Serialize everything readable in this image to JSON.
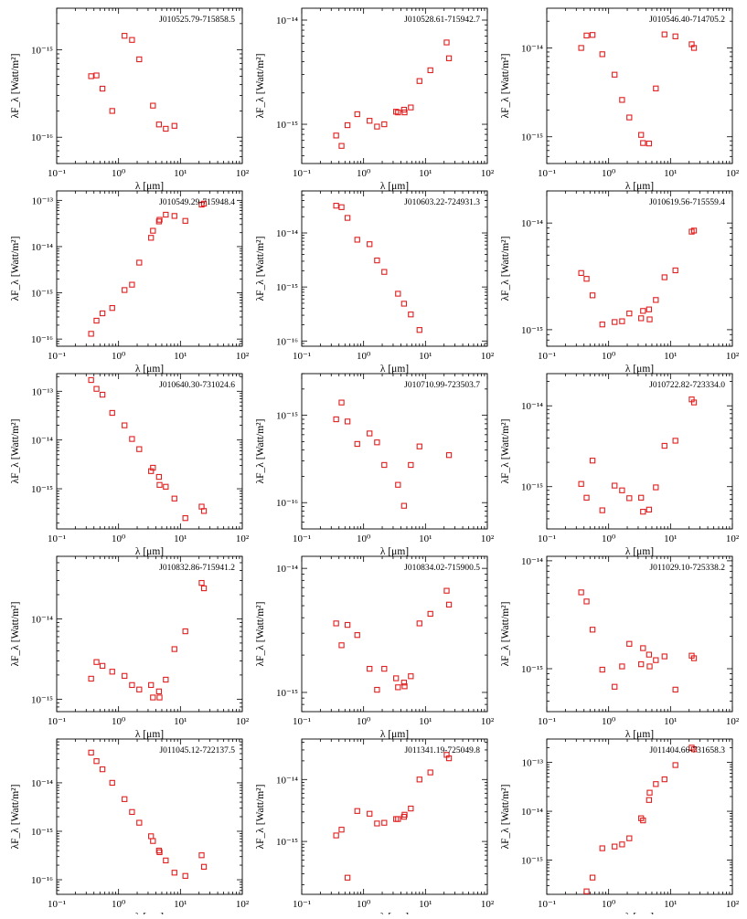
{
  "chart_data": [
    {
      "type": "scatter",
      "title": "J010525.79-715858.5",
      "xlabel": "λ [μm]",
      "ylabel": "λF_λ [Watt/m²]",
      "xscale": "log",
      "yscale": "log",
      "xlim": [
        0.1,
        100
      ],
      "ylim": [
        5e-17,
        3e-15
      ],
      "marker": "open-square",
      "color": "#e02020",
      "grid": false,
      "points": [
        [
          0.36,
          5e-16
        ],
        [
          0.44,
          5.1e-16
        ],
        [
          0.55,
          3.6e-16
        ],
        [
          0.79,
          2e-16
        ],
        [
          1.25,
          1.45e-15
        ],
        [
          1.65,
          1.3e-15
        ],
        [
          2.16,
          7.8e-16
        ],
        [
          3.6,
          2.3e-16
        ],
        [
          4.5,
          1.4e-16
        ],
        [
          5.8,
          1.25e-16
        ],
        [
          8.0,
          1.35e-16
        ]
      ]
    },
    {
      "type": "scatter",
      "title": "J010528.61-715942.7",
      "xlabel": "λ [μm]",
      "ylabel": "λF_λ [Watt/m²]",
      "xscale": "log",
      "yscale": "log",
      "xlim": [
        0.1,
        100
      ],
      "ylim": [
        4.2e-16,
        1.3e-14
      ],
      "marker": "open-square",
      "color": "#e02020",
      "grid": false,
      "points": [
        [
          0.36,
          7.8e-16
        ],
        [
          0.44,
          6.2e-16
        ],
        [
          0.55,
          9.8e-16
        ],
        [
          0.79,
          1.25e-15
        ],
        [
          1.25,
          1.08e-15
        ],
        [
          1.65,
          9.5e-16
        ],
        [
          2.16,
          1e-15
        ],
        [
          3.35,
          1.32e-15
        ],
        [
          3.6,
          1.3e-15
        ],
        [
          4.5,
          1.38e-15
        ],
        [
          4.6,
          1.3e-15
        ],
        [
          5.8,
          1.45e-15
        ],
        [
          8.0,
          2.6e-15
        ],
        [
          12,
          3.3e-15
        ],
        [
          22,
          6.1e-15
        ],
        [
          24,
          4.3e-15
        ]
      ]
    },
    {
      "type": "scatter",
      "title": "J010546.40-714705.2",
      "xlabel": "λ [μm]",
      "ylabel": "λF_λ [Watt/m²]",
      "xscale": "log",
      "yscale": "log",
      "xlim": [
        0.1,
        100
      ],
      "ylim": [
        5e-16,
        2.8e-14
      ],
      "marker": "open-square",
      "color": "#e02020",
      "grid": false,
      "points": [
        [
          0.36,
          1e-14
        ],
        [
          0.44,
          1.38e-14
        ],
        [
          0.55,
          1.4e-14
        ],
        [
          0.79,
          8.5e-15
        ],
        [
          1.25,
          5e-15
        ],
        [
          1.65,
          2.6e-15
        ],
        [
          2.16,
          1.65e-15
        ],
        [
          3.35,
          1.05e-15
        ],
        [
          3.6,
          8.5e-16
        ],
        [
          4.5,
          8.4e-16
        ],
        [
          5.8,
          3.5e-15
        ],
        [
          8.0,
          1.42e-14
        ],
        [
          12,
          1.35e-14
        ],
        [
          22,
          1.1e-14
        ],
        [
          24,
          1e-14
        ]
      ]
    },
    {
      "type": "scatter",
      "title": "J010549.29-715948.4",
      "xlabel": "λ [μm]",
      "ylabel": "λF_λ [Watt/m²]",
      "xscale": "log",
      "yscale": "log",
      "xlim": [
        0.1,
        100
      ],
      "ylim": [
        7e-17,
        1.6e-13
      ],
      "marker": "open-square",
      "color": "#e02020",
      "grid": false,
      "points": [
        [
          0.36,
          1.3e-16
        ],
        [
          0.44,
          2.5e-16
        ],
        [
          0.55,
          3.6e-16
        ],
        [
          0.79,
          4.7e-16
        ],
        [
          1.25,
          1.15e-15
        ],
        [
          1.65,
          1.5e-15
        ],
        [
          2.16,
          4.5e-15
        ],
        [
          3.35,
          1.55e-14
        ],
        [
          3.6,
          2.2e-14
        ],
        [
          4.5,
          3.5e-14
        ],
        [
          4.6,
          3.8e-14
        ],
        [
          5.8,
          4.9e-14
        ],
        [
          8.0,
          4.6e-14
        ],
        [
          12,
          3.6e-14
        ],
        [
          22,
          8.1e-14
        ],
        [
          24,
          8.5e-14
        ]
      ]
    },
    {
      "type": "scatter",
      "title": "J010603.22-724931.3",
      "xlabel": "λ [μm]",
      "ylabel": "λF_λ [Watt/m²]",
      "xscale": "log",
      "yscale": "log",
      "xlim": [
        0.1,
        100
      ],
      "ylim": [
        8e-17,
        6e-14
      ],
      "marker": "open-square",
      "color": "#e02020",
      "grid": false,
      "points": [
        [
          0.36,
          3.2e-14
        ],
        [
          0.44,
          3e-14
        ],
        [
          0.55,
          1.9e-14
        ],
        [
          0.79,
          7.5e-15
        ],
        [
          1.25,
          6.2e-15
        ],
        [
          1.65,
          3.1e-15
        ],
        [
          2.16,
          1.9e-15
        ],
        [
          3.6,
          7.5e-16
        ],
        [
          4.5,
          4.9e-16
        ],
        [
          5.8,
          3.1e-16
        ],
        [
          8.0,
          1.6e-16
        ]
      ]
    },
    {
      "type": "scatter",
      "title": "J010619.56-715559.4",
      "xlabel": "λ [μm]",
      "ylabel": "λF_λ [Watt/m²]",
      "xscale": "log",
      "yscale": "log",
      "xlim": [
        0.1,
        100
      ],
      "ylim": [
        7e-16,
        2e-14
      ],
      "marker": "open-square",
      "color": "#e02020",
      "grid": false,
      "points": [
        [
          0.36,
          3.4e-15
        ],
        [
          0.44,
          3e-15
        ],
        [
          0.55,
          2.1e-15
        ],
        [
          0.79,
          1.12e-15
        ],
        [
          1.25,
          1.18e-15
        ],
        [
          1.65,
          1.2e-15
        ],
        [
          2.16,
          1.42e-15
        ],
        [
          3.35,
          1.28e-15
        ],
        [
          3.6,
          1.5e-15
        ],
        [
          4.5,
          1.55e-15
        ],
        [
          4.6,
          1.25e-15
        ],
        [
          5.8,
          1.9e-15
        ],
        [
          8.0,
          3.1e-15
        ],
        [
          12,
          3.6e-15
        ],
        [
          22,
          8.3e-15
        ],
        [
          24,
          8.5e-15
        ]
      ]
    },
    {
      "type": "scatter",
      "title": "J010640.30-731024.6",
      "xlabel": "λ [μm]",
      "ylabel": "λF_λ [Watt/m²]",
      "xscale": "log",
      "yscale": "log",
      "xlim": [
        0.1,
        100
      ],
      "ylim": [
        1.5e-16,
        2.3e-13
      ],
      "marker": "open-square",
      "color": "#e02020",
      "grid": false,
      "points": [
        [
          0.36,
          1.7e-13
        ],
        [
          0.44,
          1.12e-13
        ],
        [
          0.55,
          8.5e-14
        ],
        [
          0.79,
          3.6e-14
        ],
        [
          1.25,
          2e-14
        ],
        [
          1.65,
          1.05e-14
        ],
        [
          2.16,
          6.5e-15
        ],
        [
          3.35,
          2.3e-15
        ],
        [
          3.6,
          2.7e-15
        ],
        [
          4.5,
          1.75e-15
        ],
        [
          4.6,
          1.2e-15
        ],
        [
          5.8,
          1.1e-15
        ],
        [
          8.0,
          6.3e-16
        ],
        [
          12,
          2.5e-16
        ],
        [
          22,
          4.3e-16
        ],
        [
          24,
          3.5e-16
        ]
      ]
    },
    {
      "type": "scatter",
      "title": "J010710.99-723503.7",
      "xlabel": "λ [μm]",
      "ylabel": "λF_λ [Watt/m²]",
      "xscale": "log",
      "yscale": "log",
      "xlim": [
        0.1,
        100
      ],
      "ylim": [
        5e-17,
        3e-15
      ],
      "marker": "open-square",
      "color": "#e02020",
      "grid": false,
      "points": [
        [
          0.36,
          9e-16
        ],
        [
          0.44,
          1.4e-15
        ],
        [
          0.55,
          8.5e-16
        ],
        [
          0.79,
          4.7e-16
        ],
        [
          1.25,
          6.2e-16
        ],
        [
          1.65,
          4.9e-16
        ],
        [
          2.16,
          2.7e-16
        ],
        [
          3.6,
          1.6e-16
        ],
        [
          4.5,
          9.2e-17
        ],
        [
          5.8,
          2.7e-16
        ],
        [
          8.0,
          4.4e-16
        ],
        [
          24,
          3.5e-16
        ]
      ]
    },
    {
      "type": "scatter",
      "title": "J010722.82-723334.0",
      "xlabel": "λ [μm]",
      "ylabel": "λF_λ [Watt/m²]",
      "xscale": "log",
      "yscale": "log",
      "xlim": [
        0.1,
        100
      ],
      "ylim": [
        3e-16,
        2.5e-14
      ],
      "marker": "open-square",
      "color": "#e02020",
      "grid": false,
      "points": [
        [
          0.36,
          1.08e-15
        ],
        [
          0.44,
          7.3e-16
        ],
        [
          0.55,
          2.1e-15
        ],
        [
          0.79,
          5.1e-16
        ],
        [
          1.25,
          1.03e-15
        ],
        [
          1.65,
          9e-16
        ],
        [
          2.16,
          7.2e-16
        ],
        [
          3.35,
          7.3e-16
        ],
        [
          3.6,
          4.9e-16
        ],
        [
          4.5,
          5.2e-16
        ],
        [
          5.8,
          9.8e-16
        ],
        [
          8.0,
          3.2e-15
        ],
        [
          12,
          3.7e-15
        ],
        [
          22,
          1.2e-14
        ],
        [
          24,
          1.1e-14
        ]
      ]
    },
    {
      "type": "scatter",
      "title": "J010832.86-715941.2",
      "xlabel": "λ [μm]",
      "ylabel": "λF_λ [Watt/m²]",
      "xscale": "log",
      "yscale": "log",
      "xlim": [
        0.1,
        100
      ],
      "ylim": [
        7e-16,
        6e-14
      ],
      "marker": "open-square",
      "color": "#e02020",
      "grid": false,
      "points": [
        [
          0.36,
          1.8e-15
        ],
        [
          0.44,
          2.9e-15
        ],
        [
          0.55,
          2.6e-15
        ],
        [
          0.79,
          2.2e-15
        ],
        [
          1.25,
          1.95e-15
        ],
        [
          1.65,
          1.5e-15
        ],
        [
          2.16,
          1.32e-15
        ],
        [
          3.35,
          1.5e-15
        ],
        [
          3.6,
          1.05e-15
        ],
        [
          4.5,
          1.25e-15
        ],
        [
          4.6,
          1.05e-15
        ],
        [
          5.8,
          1.75e-15
        ],
        [
          8.0,
          4.2e-15
        ],
        [
          12,
          7e-15
        ],
        [
          22,
          2.8e-14
        ],
        [
          24,
          2.4e-14
        ]
      ]
    },
    {
      "type": "scatter",
      "title": "J010834.02-715900.5",
      "xlabel": "λ [μm]",
      "ylabel": "λF_λ [Watt/m²]",
      "xscale": "log",
      "yscale": "log",
      "xlim": [
        0.1,
        100
      ],
      "ylim": [
        7e-16,
        1.25e-14
      ],
      "marker": "open-square",
      "color": "#e02020",
      "grid": false,
      "points": [
        [
          0.36,
          3.6e-15
        ],
        [
          0.44,
          2.4e-15
        ],
        [
          0.55,
          3.5e-15
        ],
        [
          0.79,
          2.9e-15
        ],
        [
          1.25,
          1.55e-15
        ],
        [
          1.65,
          1.05e-15
        ],
        [
          2.16,
          1.55e-15
        ],
        [
          3.35,
          1.3e-15
        ],
        [
          3.6,
          1.1e-15
        ],
        [
          4.5,
          1.2e-15
        ],
        [
          4.6,
          1.12e-15
        ],
        [
          5.8,
          1.35e-15
        ],
        [
          8.0,
          3.6e-15
        ],
        [
          12,
          4.3e-15
        ],
        [
          22,
          6.6e-15
        ],
        [
          24,
          5.1e-15
        ]
      ]
    },
    {
      "type": "scatter",
      "title": "J011029.10-725338.2",
      "xlabel": "λ [μm]",
      "ylabel": "λF_λ [Watt/m²]",
      "xscale": "log",
      "yscale": "log",
      "xlim": [
        0.1,
        100
      ],
      "ylim": [
        4e-16,
        1.1e-14
      ],
      "marker": "open-square",
      "color": "#e02020",
      "grid": false,
      "points": [
        [
          0.36,
          5.1e-15
        ],
        [
          0.44,
          4.2e-15
        ],
        [
          0.55,
          2.3e-15
        ],
        [
          0.79,
          9.8e-16
        ],
        [
          1.25,
          6.8e-16
        ],
        [
          1.65,
          1.05e-15
        ],
        [
          2.16,
          1.7e-15
        ],
        [
          3.35,
          1.1e-15
        ],
        [
          3.6,
          1.55e-15
        ],
        [
          4.5,
          1.35e-15
        ],
        [
          4.6,
          1.05e-15
        ],
        [
          5.8,
          1.2e-15
        ],
        [
          8.0,
          1.3e-15
        ],
        [
          12,
          6.4e-16
        ],
        [
          22,
          1.32e-15
        ],
        [
          24,
          1.25e-15
        ]
      ]
    },
    {
      "type": "scatter",
      "title": "J011045.12-722137.5",
      "xlabel": "λ [μm]",
      "ylabel": "λF_λ [Watt/m²]",
      "xscale": "log",
      "yscale": "log",
      "xlim": [
        0.1,
        100
      ],
      "ylim": [
        5e-17,
        8e-14
      ],
      "marker": "open-square",
      "color": "#e02020",
      "grid": false,
      "points": [
        [
          0.36,
          4.2e-14
        ],
        [
          0.44,
          2.8e-14
        ],
        [
          0.55,
          1.9e-14
        ],
        [
          0.79,
          1e-14
        ],
        [
          1.25,
          4.6e-15
        ],
        [
          1.65,
          2.5e-15
        ],
        [
          2.16,
          1.5e-15
        ],
        [
          3.35,
          7.9e-16
        ],
        [
          3.6,
          6.3e-16
        ],
        [
          4.5,
          4e-16
        ],
        [
          4.6,
          3.7e-16
        ],
        [
          5.8,
          2.5e-16
        ],
        [
          8.0,
          1.4e-16
        ],
        [
          12,
          1.2e-16
        ],
        [
          22,
          3.2e-16
        ],
        [
          24,
          1.85e-16
        ]
      ]
    },
    {
      "type": "scatter",
      "title": "J011341.19-725049.8",
      "xlabel": "λ [μm]",
      "ylabel": "λF_λ [Watt/m²]",
      "xscale": "log",
      "yscale": "log",
      "xlim": [
        0.1,
        100
      ],
      "ylim": [
        1.4e-16,
        4.5e-14
      ],
      "marker": "open-square",
      "color": "#e02020",
      "grid": false,
      "points": [
        [
          0.36,
          1.25e-15
        ],
        [
          0.44,
          1.55e-15
        ],
        [
          0.55,
          2.6e-16
        ],
        [
          0.79,
          3.1e-15
        ],
        [
          1.25,
          2.8e-15
        ],
        [
          1.65,
          1.95e-15
        ],
        [
          2.16,
          2e-15
        ],
        [
          3.35,
          2.3e-15
        ],
        [
          3.6,
          2.3e-15
        ],
        [
          4.5,
          2.5e-15
        ],
        [
          4.6,
          2.7e-15
        ],
        [
          5.8,
          3.4e-15
        ],
        [
          8.0,
          1e-14
        ],
        [
          12,
          1.3e-14
        ],
        [
          22,
          2.5e-14
        ],
        [
          24,
          2.2e-14
        ]
      ]
    },
    {
      "type": "scatter",
      "title": "J011404.66-731658.3",
      "xlabel": "λ [μm]",
      "ylabel": "λF_λ [Watt/m²]",
      "xscale": "log",
      "yscale": "log",
      "xlim": [
        0.1,
        100
      ],
      "ylim": [
        2e-16,
        3e-13
      ],
      "marker": "open-square",
      "color": "#e02020",
      "grid": false,
      "points": [
        [
          0.44,
          2.3e-16
        ],
        [
          0.55,
          4.4e-16
        ],
        [
          0.79,
          1.75e-15
        ],
        [
          1.25,
          1.9e-15
        ],
        [
          1.65,
          2.1e-15
        ],
        [
          2.16,
          2.8e-15
        ],
        [
          3.35,
          7.2e-15
        ],
        [
          3.6,
          6.5e-15
        ],
        [
          4.5,
          1.7e-14
        ],
        [
          4.6,
          2.4e-14
        ],
        [
          5.8,
          3.6e-14
        ],
        [
          8.0,
          4.5e-14
        ],
        [
          12,
          8.8e-14
        ],
        [
          22,
          2e-13
        ],
        [
          24,
          1.85e-13
        ]
      ]
    }
  ]
}
